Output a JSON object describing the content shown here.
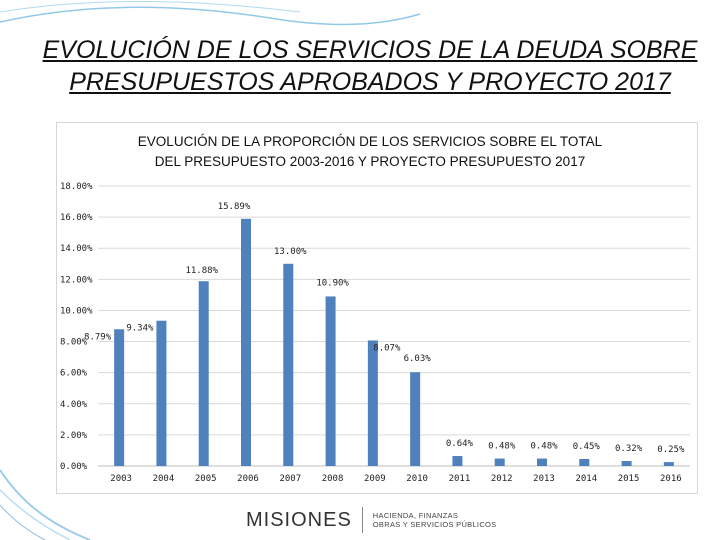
{
  "slide": {
    "title_line1": "EVOLUCIÓN DE LOS SERVICIOS DE LA DEUDA SOBRE",
    "title_line2": "PRESUPUESTOS APROBADOS Y PROYECTO 2017"
  },
  "footer": {
    "logo_text": "MISIONES",
    "logo_line1": "HACIENDA, FINANZAS",
    "logo_line2": "OBRAS Y SERVICIOS PÚBLICOS"
  },
  "colors": {
    "bar": "#4f81bd",
    "grid": "#d9d9d9",
    "wave": "#4aa3d8"
  },
  "chart_data": {
    "type": "bar",
    "title_line1": "EVOLUCIÓN DE LA PROPORCIÓN DE LOS SERVICIOS SOBRE EL TOTAL",
    "title_line2": "DEL PRESUPUESTO 2003-2016 Y PROYECTO PRESUPUESTO 2017",
    "categories": [
      "2003",
      "2004",
      "2005",
      "2006",
      "2007",
      "2008",
      "2009",
      "2010",
      "2011",
      "2012",
      "2013",
      "2014",
      "2015",
      "2016"
    ],
    "values": [
      8.79,
      9.34,
      11.88,
      15.89,
      13.0,
      10.9,
      8.07,
      6.03,
      0.64,
      0.48,
      0.48,
      0.45,
      0.32,
      0.25
    ],
    "value_labels": [
      "8.79%",
      "9.34%",
      "11.88%",
      "15.89%",
      "13.00%",
      "10.90%",
      "8.07%",
      "6.03%",
      "0.64%",
      "0.48%",
      "0.48%",
      "0.45%",
      "0.32%",
      "0.25%"
    ],
    "y_ticks": [
      0,
      2,
      4,
      6,
      8,
      10,
      12,
      14,
      16,
      18
    ],
    "y_tick_labels": [
      "0.00%",
      "2.00%",
      "4.00%",
      "6.00%",
      "8.00%",
      "10.00%",
      "12.00%",
      "14.00%",
      "16.00%",
      "18.00%"
    ],
    "ylim": [
      0,
      18
    ],
    "xlabel": "",
    "ylabel": "",
    "grid": true
  }
}
